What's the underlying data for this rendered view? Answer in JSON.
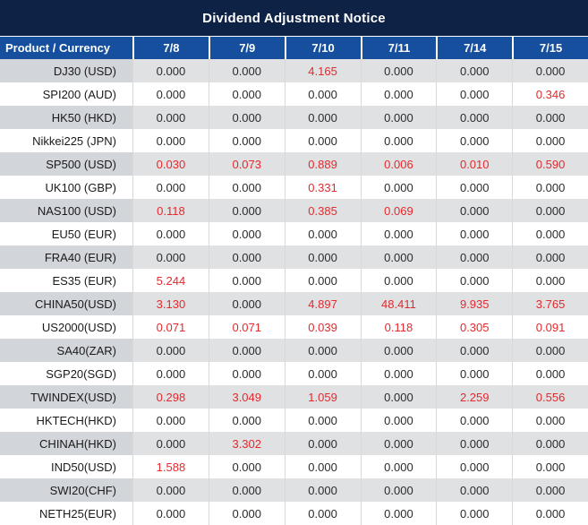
{
  "title": "Dividend Adjustment Notice",
  "colors": {
    "title_bar_bg": "#0d2244",
    "header_bg": "#164f9e",
    "header_text": "#ffffff",
    "row_alt_product_bg": "#d2d5da",
    "row_alt_cell_bg": "#e0e1e3",
    "row_white_bg": "#ffffff",
    "value_text": "#2b2b2b",
    "negative_value_text": "#e4292d",
    "grid_line": "#d9d9d9"
  },
  "chart_data": {
    "type": "table",
    "title": "Dividend Adjustment Notice",
    "columns": [
      "Product / Currency",
      "7/8",
      "7/9",
      "7/10",
      "7/11",
      "7/14",
      "7/15"
    ],
    "rows": [
      {
        "product": "DJ30 (USD)",
        "values": [
          "0.000",
          "0.000",
          "4.165",
          "0.000",
          "0.000",
          "0.000"
        ],
        "red": [
          false,
          false,
          true,
          false,
          false,
          false
        ]
      },
      {
        "product": "SPI200 (AUD)",
        "values": [
          "0.000",
          "0.000",
          "0.000",
          "0.000",
          "0.000",
          "0.346"
        ],
        "red": [
          false,
          false,
          false,
          false,
          false,
          true
        ]
      },
      {
        "product": "HK50 (HKD)",
        "values": [
          "0.000",
          "0.000",
          "0.000",
          "0.000",
          "0.000",
          "0.000"
        ],
        "red": [
          false,
          false,
          false,
          false,
          false,
          false
        ]
      },
      {
        "product": "Nikkei225 (JPN)",
        "values": [
          "0.000",
          "0.000",
          "0.000",
          "0.000",
          "0.000",
          "0.000"
        ],
        "red": [
          false,
          false,
          false,
          false,
          false,
          false
        ]
      },
      {
        "product": "SP500 (USD)",
        "values": [
          "0.030",
          "0.073",
          "0.889",
          "0.006",
          "0.010",
          "0.590"
        ],
        "red": [
          true,
          true,
          true,
          true,
          true,
          true
        ]
      },
      {
        "product": "UK100 (GBP)",
        "values": [
          "0.000",
          "0.000",
          "0.331",
          "0.000",
          "0.000",
          "0.000"
        ],
        "red": [
          false,
          false,
          true,
          false,
          false,
          false
        ]
      },
      {
        "product": "NAS100 (USD)",
        "values": [
          "0.118",
          "0.000",
          "0.385",
          "0.069",
          "0.000",
          "0.000"
        ],
        "red": [
          true,
          false,
          true,
          true,
          false,
          false
        ]
      },
      {
        "product": "EU50 (EUR)",
        "values": [
          "0.000",
          "0.000",
          "0.000",
          "0.000",
          "0.000",
          "0.000"
        ],
        "red": [
          false,
          false,
          false,
          false,
          false,
          false
        ]
      },
      {
        "product": "FRA40 (EUR)",
        "values": [
          "0.000",
          "0.000",
          "0.000",
          "0.000",
          "0.000",
          "0.000"
        ],
        "red": [
          false,
          false,
          false,
          false,
          false,
          false
        ]
      },
      {
        "product": "ES35 (EUR)",
        "values": [
          "5.244",
          "0.000",
          "0.000",
          "0.000",
          "0.000",
          "0.000"
        ],
        "red": [
          true,
          false,
          false,
          false,
          false,
          false
        ]
      },
      {
        "product": "CHINA50(USD)",
        "values": [
          "3.130",
          "0.000",
          "4.897",
          "48.411",
          "9.935",
          "3.765"
        ],
        "red": [
          true,
          false,
          true,
          true,
          true,
          true
        ]
      },
      {
        "product": "US2000(USD)",
        "values": [
          "0.071",
          "0.071",
          "0.039",
          "0.118",
          "0.305",
          "0.091"
        ],
        "red": [
          true,
          true,
          true,
          true,
          true,
          true
        ]
      },
      {
        "product": "SA40(ZAR)",
        "values": [
          "0.000",
          "0.000",
          "0.000",
          "0.000",
          "0.000",
          "0.000"
        ],
        "red": [
          false,
          false,
          false,
          false,
          false,
          false
        ]
      },
      {
        "product": "SGP20(SGD)",
        "values": [
          "0.000",
          "0.000",
          "0.000",
          "0.000",
          "0.000",
          "0.000"
        ],
        "red": [
          false,
          false,
          false,
          false,
          false,
          false
        ]
      },
      {
        "product": "TWINDEX(USD)",
        "values": [
          "0.298",
          "3.049",
          "1.059",
          "0.000",
          "2.259",
          "0.556"
        ],
        "red": [
          true,
          true,
          true,
          false,
          true,
          true
        ]
      },
      {
        "product": "HKTECH(HKD)",
        "values": [
          "0.000",
          "0.000",
          "0.000",
          "0.000",
          "0.000",
          "0.000"
        ],
        "red": [
          false,
          false,
          false,
          false,
          false,
          false
        ]
      },
      {
        "product": "CHINAH(HKD)",
        "values": [
          "0.000",
          "3.302",
          "0.000",
          "0.000",
          "0.000",
          "0.000"
        ],
        "red": [
          false,
          true,
          false,
          false,
          false,
          false
        ]
      },
      {
        "product": "IND50(USD)",
        "values": [
          "1.588",
          "0.000",
          "0.000",
          "0.000",
          "0.000",
          "0.000"
        ],
        "red": [
          true,
          false,
          false,
          false,
          false,
          false
        ]
      },
      {
        "product": "SWI20(CHF)",
        "values": [
          "0.000",
          "0.000",
          "0.000",
          "0.000",
          "0.000",
          "0.000"
        ],
        "red": [
          false,
          false,
          false,
          false,
          false,
          false
        ]
      },
      {
        "product": "NETH25(EUR)",
        "values": [
          "0.000",
          "0.000",
          "0.000",
          "0.000",
          "0.000",
          "0.000"
        ],
        "red": [
          false,
          false,
          false,
          false,
          false,
          false
        ]
      }
    ]
  }
}
